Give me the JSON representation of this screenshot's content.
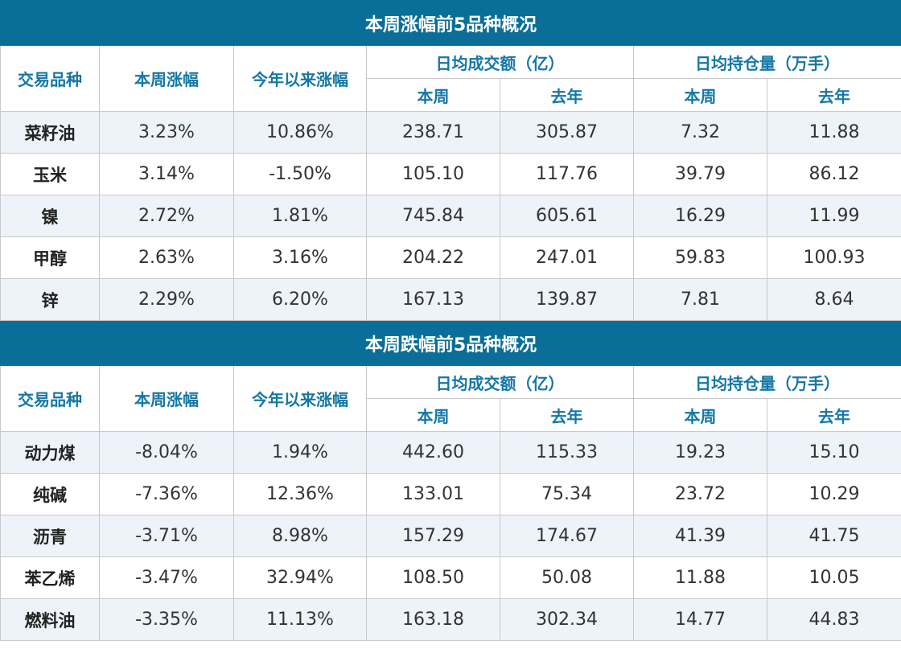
{
  "tables": [
    {
      "title": "本周涨幅前5品种概况",
      "headers": {
        "variety": "交易品种",
        "week_change": "本周涨幅",
        "ytd_change": "今年以来涨幅",
        "avg_volume": "日均成交额（亿）",
        "avg_oi": "日均持仓量（万手）",
        "this_week": "本周",
        "last_year": "去年"
      },
      "rows": [
        {
          "name": "菜籽油",
          "week": "3.23%",
          "ytd": "10.86%",
          "vol_week": "238.71",
          "vol_last": "305.87",
          "oi_week": "7.32",
          "oi_last": "11.88"
        },
        {
          "name": "玉米",
          "week": "3.14%",
          "ytd": "-1.50%",
          "vol_week": "105.10",
          "vol_last": "117.76",
          "oi_week": "39.79",
          "oi_last": "86.12"
        },
        {
          "name": "镍",
          "week": "2.72%",
          "ytd": "1.81%",
          "vol_week": "745.84",
          "vol_last": "605.61",
          "oi_week": "16.29",
          "oi_last": "11.99"
        },
        {
          "name": "甲醇",
          "week": "2.63%",
          "ytd": "3.16%",
          "vol_week": "204.22",
          "vol_last": "247.01",
          "oi_week": "59.83",
          "oi_last": "100.93"
        },
        {
          "name": "锌",
          "week": "2.29%",
          "ytd": "6.20%",
          "vol_week": "167.13",
          "vol_last": "139.87",
          "oi_week": "7.81",
          "oi_last": "8.64"
        }
      ]
    },
    {
      "title": "本周跌幅前5品种概况",
      "headers": {
        "variety": "交易品种",
        "week_change": "本周涨幅",
        "ytd_change": "今年以来涨幅",
        "avg_volume": "日均成交额（亿）",
        "avg_oi": "日均持仓量（万手）",
        "this_week": "本周",
        "last_year": "去年"
      },
      "rows": [
        {
          "name": "动力煤",
          "week": "-8.04%",
          "ytd": "1.94%",
          "vol_week": "442.60",
          "vol_last": "115.33",
          "oi_week": "19.23",
          "oi_last": "15.10"
        },
        {
          "name": "纯碱",
          "week": "-7.36%",
          "ytd": "12.36%",
          "vol_week": "133.01",
          "vol_last": "75.34",
          "oi_week": "23.72",
          "oi_last": "10.29"
        },
        {
          "name": "沥青",
          "week": "-3.71%",
          "ytd": "8.98%",
          "vol_week": "157.29",
          "vol_last": "174.67",
          "oi_week": "41.39",
          "oi_last": "41.75"
        },
        {
          "name": "苯乙烯",
          "week": "-3.47%",
          "ytd": "32.94%",
          "vol_week": "108.50",
          "vol_last": "50.08",
          "oi_week": "11.88",
          "oi_last": "10.05"
        },
        {
          "name": "燃料油",
          "week": "-3.35%",
          "ytd": "11.13%",
          "vol_week": "163.18",
          "vol_last": "302.34",
          "oi_week": "14.77",
          "oi_last": "44.83"
        }
      ]
    }
  ]
}
